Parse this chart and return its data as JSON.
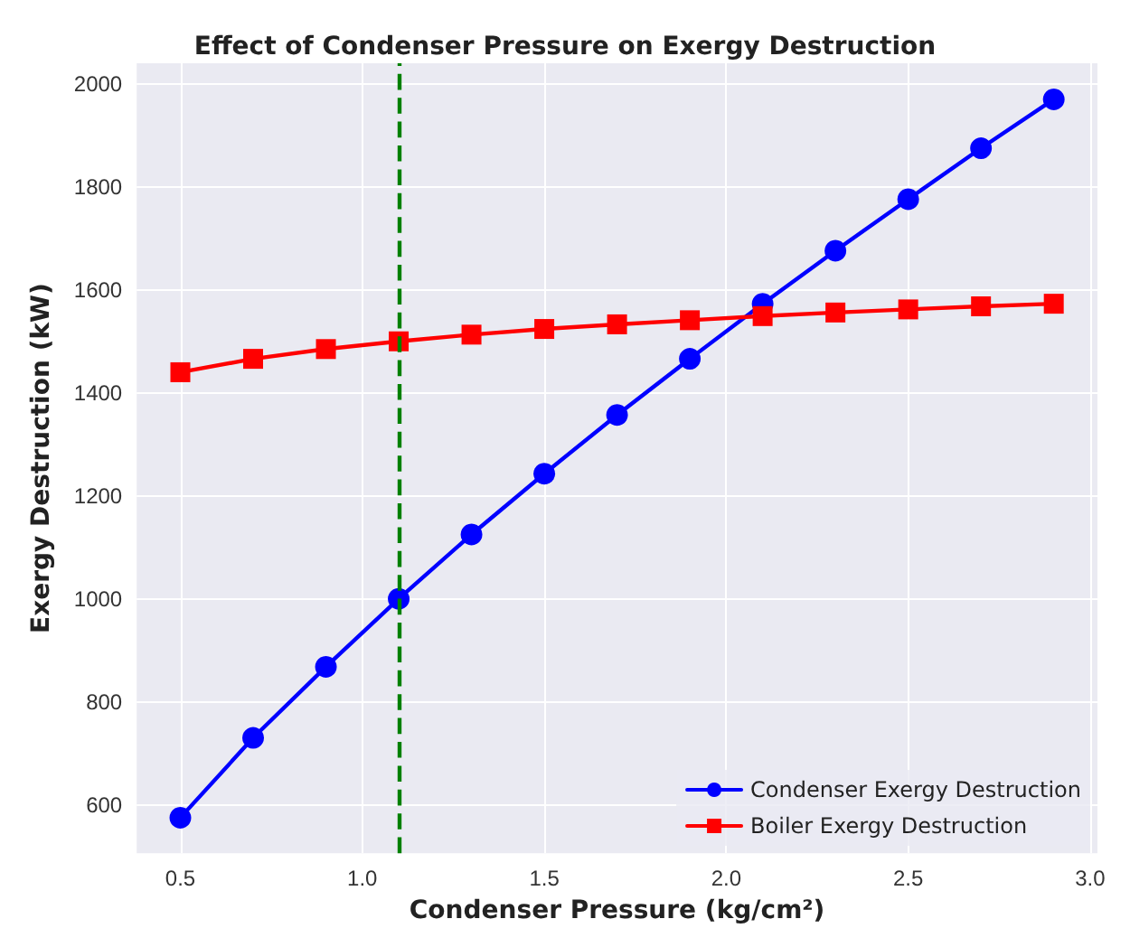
{
  "chart_data": {
    "type": "line",
    "title": "Effect of Condenser Pressure on Exergy Destruction",
    "xlabel": "Condenser Pressure (kg/cm²)",
    "ylabel": "Exergy Destruction (kW)",
    "x": [
      0.5,
      0.7,
      0.9,
      1.1,
      1.3,
      1.5,
      1.7,
      1.9,
      2.1,
      2.3,
      2.5,
      2.7,
      2.9
    ],
    "series": [
      {
        "name": "Condenser Exergy Destruction",
        "color": "#0000ff",
        "marker": "circle",
        "values": [
          575,
          730,
          868,
          1000,
          1125,
          1243,
          1357,
          1466,
          1573,
          1676,
          1776,
          1875,
          1970
        ]
      },
      {
        "name": "Boiler Exergy Destruction",
        "color": "#ff0000",
        "marker": "square",
        "values": [
          1440,
          1466,
          1485,
          1500,
          1513,
          1524,
          1533,
          1541,
          1549,
          1556,
          1562,
          1568,
          1573
        ]
      }
    ],
    "xlim": [
      0.38,
      3.02
    ],
    "xticks": [
      0.5,
      {
        "value": 1,
        "label": "1.0"
      },
      1.5,
      {
        "value": 2,
        "label": "2.0"
      },
      2.5,
      {
        "value": 3,
        "label": "3.0"
      }
    ],
    "ylim": [
      506,
      2040
    ],
    "yticks": [
      600,
      800,
      1000,
      1200,
      1400,
      1600,
      1800,
      2000
    ],
    "ref_lines": [
      {
        "axis": "x",
        "value": 1.1,
        "color": "#008000",
        "line_style": "dashed"
      }
    ],
    "grid": true,
    "legend": "bottom right",
    "line_style": "solid"
  }
}
